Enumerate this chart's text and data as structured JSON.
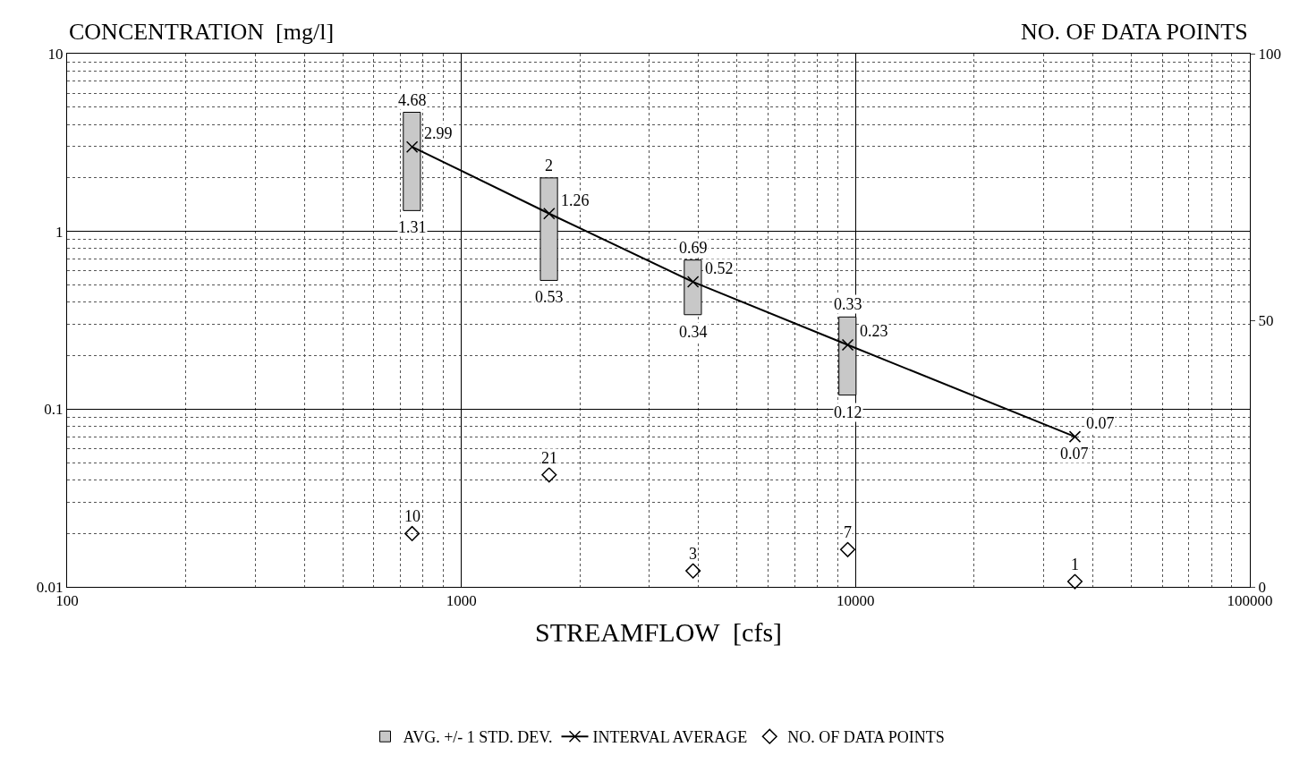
{
  "chart_data": {
    "type": "bar",
    "xlabel": "STREAMFLOW  [cfs]",
    "ylabel": "CONCENTRATION  [mg/l]",
    "y2label": "NO. OF DATA POINTS",
    "log": "xy",
    "xlim": [
      100,
      100000
    ],
    "xticks": [
      100,
      1000,
      10000,
      100000
    ],
    "ylim": [
      0.01,
      10
    ],
    "yticks": [
      0.01,
      0.1,
      1,
      10
    ],
    "y2lim": [
      0,
      100
    ],
    "y2ticks": [
      0,
      50,
      100
    ],
    "grid": true,
    "legend": "bottom",
    "series": [
      {
        "name": "AVG. +/- 1 STD. DEV.",
        "color": "#c8c8c8",
        "x": [
          750,
          1670,
          3870,
          9550
        ],
        "base": [
          1.31,
          0.53,
          0.34,
          0.12
        ],
        "values": [
          3.37,
          1.47,
          0.35,
          0.21
        ]
      },
      {
        "name": "INTERVAL AVERAGE",
        "type": "line",
        "color": "#000000",
        "marker": "cross",
        "x": [
          750,
          1670,
          3870,
          9550,
          36000
        ],
        "values": [
          2.99,
          1.26,
          0.52,
          0.23,
          0.07
        ],
        "value_labels": [
          "2.99",
          "1.26",
          "0.52",
          "0.23",
          "0.07"
        ]
      },
      {
        "name": "NO. OF DATA POINTS",
        "type": "scatter",
        "axis": "y2",
        "color": "#000000",
        "marker": "diamond",
        "x": [
          750,
          1670,
          3870,
          9550,
          36000
        ],
        "values": [
          10,
          21,
          3,
          7,
          1
        ],
        "value_labels": [
          "10",
          "21",
          "3",
          "7",
          "1"
        ]
      }
    ],
    "annotations": [
      {
        "text": "4.68",
        "x": 750,
        "y": 4.68
      },
      {
        "text": "1.31",
        "x": 750,
        "y": 1.31
      },
      {
        "text": "2",
        "x": 1670,
        "y": 2
      },
      {
        "text": "0.53",
        "x": 1670,
        "y": 0.53
      },
      {
        "text": "0.69",
        "x": 3870,
        "y": 0.69
      },
      {
        "text": "0.34",
        "x": 3870,
        "y": 0.34
      },
      {
        "text": "0.33",
        "x": 9550,
        "y": 0.33
      },
      {
        "text": "0.12",
        "x": 9550,
        "y": 0.12
      },
      {
        "text": "0.07",
        "x": 36000,
        "y": 0.07
      }
    ]
  }
}
